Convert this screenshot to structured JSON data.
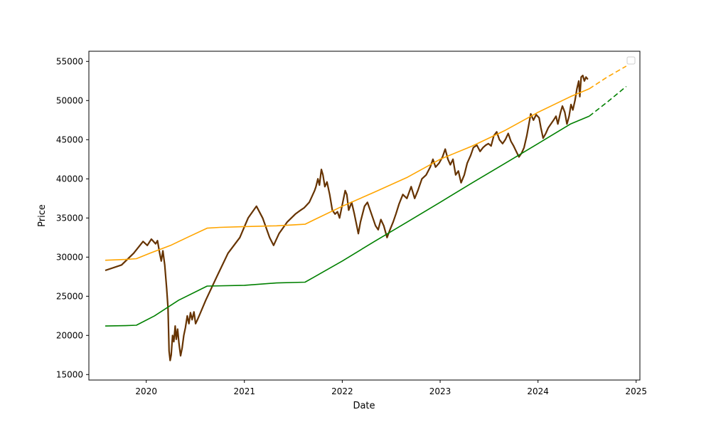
{
  "chart_data": {
    "type": "line",
    "title": "",
    "xlabel": "Date",
    "ylabel": "Price",
    "xlim": [
      "2019-06-01",
      "2025-01-15"
    ],
    "ylim": [
      14300,
      56300
    ],
    "x_ticks": [
      "2020",
      "2021",
      "2022",
      "2023",
      "2024",
      "2025"
    ],
    "y_ticks": [
      15000,
      20000,
      25000,
      30000,
      35000,
      40000,
      45000,
      50000,
      55000
    ],
    "grid": false,
    "legend": {
      "placement": "top-right",
      "entries": []
    },
    "colors": {
      "price": "#663300",
      "upper_band": "#ffa500",
      "lower_band": "#008000"
    },
    "series": [
      {
        "key": "price",
        "style": "solid",
        "points": [
          [
            "2019-08-01",
            28300
          ],
          [
            "2019-10-01",
            29000
          ],
          [
            "2019-11-15",
            30500
          ],
          [
            "2019-12-20",
            32000
          ],
          [
            "2020-01-05",
            31500
          ],
          [
            "2020-01-20",
            32300
          ],
          [
            "2020-02-05",
            31700
          ],
          [
            "2020-02-12",
            32100
          ],
          [
            "2020-02-20",
            30500
          ],
          [
            "2020-02-26",
            29500
          ],
          [
            "2020-03-03",
            30800
          ],
          [
            "2020-03-10",
            29000
          ],
          [
            "2020-03-17",
            26000
          ],
          [
            "2020-03-22",
            23500
          ],
          [
            "2020-03-26",
            18000
          ],
          [
            "2020-03-30",
            16800
          ],
          [
            "2020-04-03",
            17500
          ],
          [
            "2020-04-08",
            20000
          ],
          [
            "2020-04-13",
            19200
          ],
          [
            "2020-04-18",
            21200
          ],
          [
            "2020-04-22",
            19500
          ],
          [
            "2020-04-27",
            20800
          ],
          [
            "2020-05-02",
            19000
          ],
          [
            "2020-05-08",
            17400
          ],
          [
            "2020-05-14",
            18400
          ],
          [
            "2020-05-20",
            20000
          ],
          [
            "2020-05-26",
            21000
          ],
          [
            "2020-06-02",
            22500
          ],
          [
            "2020-06-08",
            21500
          ],
          [
            "2020-06-14",
            22900
          ],
          [
            "2020-06-20",
            22000
          ],
          [
            "2020-06-27",
            23000
          ],
          [
            "2020-07-03",
            21500
          ],
          [
            "2020-07-10",
            22000
          ],
          [
            "2020-07-20",
            22800
          ],
          [
            "2020-08-10",
            24500
          ],
          [
            "2020-09-20",
            27500
          ],
          [
            "2020-11-01",
            30500
          ],
          [
            "2020-12-15",
            32500
          ],
          [
            "2021-01-15",
            35000
          ],
          [
            "2021-02-15",
            36500
          ],
          [
            "2021-03-10",
            35000
          ],
          [
            "2021-04-05",
            32500
          ],
          [
            "2021-04-20",
            31500
          ],
          [
            "2021-05-10",
            33000
          ],
          [
            "2021-06-10",
            34500
          ],
          [
            "2021-07-10",
            35500
          ],
          [
            "2021-07-30",
            36000
          ],
          [
            "2021-08-12",
            36300
          ],
          [
            "2021-08-31",
            37000
          ],
          [
            "2021-09-20",
            38500
          ],
          [
            "2021-09-25",
            39000
          ],
          [
            "2021-10-02",
            40000
          ],
          [
            "2021-10-08",
            39200
          ],
          [
            "2021-10-15",
            41200
          ],
          [
            "2021-10-21",
            40500
          ],
          [
            "2021-10-28",
            39000
          ],
          [
            "2021-11-05",
            39600
          ],
          [
            "2021-11-15",
            38000
          ],
          [
            "2021-11-25",
            36000
          ],
          [
            "2021-12-05",
            35500
          ],
          [
            "2021-12-14",
            35800
          ],
          [
            "2021-12-22",
            35000
          ],
          [
            "2022-01-03",
            37000
          ],
          [
            "2022-01-12",
            38500
          ],
          [
            "2022-01-18",
            38000
          ],
          [
            "2022-01-25",
            36000
          ],
          [
            "2022-02-05",
            37000
          ],
          [
            "2022-02-15",
            35500
          ],
          [
            "2022-02-24",
            34000
          ],
          [
            "2022-03-02",
            33000
          ],
          [
            "2022-03-10",
            34500
          ],
          [
            "2022-03-25",
            36500
          ],
          [
            "2022-04-05",
            37000
          ],
          [
            "2022-04-15",
            36000
          ],
          [
            "2022-04-25",
            35000
          ],
          [
            "2022-05-05",
            34000
          ],
          [
            "2022-05-15",
            33500
          ],
          [
            "2022-05-25",
            34800
          ],
          [
            "2022-06-05",
            34000
          ],
          [
            "2022-06-17",
            32500
          ],
          [
            "2022-06-28",
            33500
          ],
          [
            "2022-07-10",
            34500
          ],
          [
            "2022-07-20",
            35500
          ],
          [
            "2022-08-01",
            36800
          ],
          [
            "2022-08-15",
            38000
          ],
          [
            "2022-08-30",
            37500
          ],
          [
            "2022-09-15",
            39000
          ],
          [
            "2022-09-28",
            37500
          ],
          [
            "2022-10-10",
            38500
          ],
          [
            "2022-10-25",
            40000
          ],
          [
            "2022-11-10",
            40500
          ],
          [
            "2022-11-25",
            41500
          ],
          [
            "2022-12-05",
            42500
          ],
          [
            "2022-12-15",
            41500
          ],
          [
            "2022-12-28",
            42000
          ],
          [
            "2023-01-10",
            42800
          ],
          [
            "2023-01-20",
            43800
          ],
          [
            "2023-01-30",
            42500
          ],
          [
            "2023-02-08",
            41800
          ],
          [
            "2023-02-18",
            42500
          ],
          [
            "2023-02-28",
            40500
          ],
          [
            "2023-03-10",
            41000
          ],
          [
            "2023-03-20",
            39500
          ],
          [
            "2023-04-01",
            40500
          ],
          [
            "2023-04-12",
            42000
          ],
          [
            "2023-04-25",
            43000
          ],
          [
            "2023-05-05",
            44000
          ],
          [
            "2023-05-18",
            44300
          ],
          [
            "2023-05-30",
            43500
          ],
          [
            "2023-06-10",
            44000
          ],
          [
            "2023-06-20",
            44300
          ],
          [
            "2023-06-30",
            44500
          ],
          [
            "2023-07-10",
            44200
          ],
          [
            "2023-07-20",
            45500
          ],
          [
            "2023-07-31",
            46000
          ],
          [
            "2023-08-10",
            45000
          ],
          [
            "2023-08-22",
            44500
          ],
          [
            "2023-09-01",
            45000
          ],
          [
            "2023-09-12",
            45800
          ],
          [
            "2023-09-22",
            44800
          ],
          [
            "2023-10-02",
            44200
          ],
          [
            "2023-10-12",
            43500
          ],
          [
            "2023-10-22",
            42800
          ],
          [
            "2023-11-01",
            43300
          ],
          [
            "2023-11-10",
            44000
          ],
          [
            "2023-11-20",
            45500
          ],
          [
            "2023-11-28",
            47000
          ],
          [
            "2023-12-05",
            48300
          ],
          [
            "2023-12-15",
            47500
          ],
          [
            "2023-12-25",
            48200
          ],
          [
            "2024-01-05",
            47800
          ],
          [
            "2024-01-12",
            46500
          ],
          [
            "2024-01-20",
            45200
          ],
          [
            "2024-01-30",
            45800
          ],
          [
            "2024-02-08",
            46500
          ],
          [
            "2024-02-18",
            47000
          ],
          [
            "2024-02-28",
            47500
          ],
          [
            "2024-03-08",
            48000
          ],
          [
            "2024-03-15",
            47000
          ],
          [
            "2024-03-25",
            48500
          ],
          [
            "2024-04-01",
            49300
          ],
          [
            "2024-04-10",
            48500
          ],
          [
            "2024-04-18",
            47000
          ],
          [
            "2024-04-26",
            48000
          ],
          [
            "2024-05-03",
            49500
          ],
          [
            "2024-05-10",
            48800
          ],
          [
            "2024-05-18",
            50000
          ],
          [
            "2024-05-25",
            51500
          ],
          [
            "2024-06-01",
            52500
          ],
          [
            "2024-06-05",
            50500
          ],
          [
            "2024-06-10",
            53000
          ],
          [
            "2024-06-16",
            53200
          ],
          [
            "2024-06-22",
            52500
          ],
          [
            "2024-06-28",
            53000
          ],
          [
            "2024-07-05",
            52700
          ]
        ]
      },
      {
        "key": "upper_band",
        "style": "solid",
        "points": [
          [
            "2019-08-01",
            29600
          ],
          [
            "2019-10-15",
            29700
          ],
          [
            "2019-11-25",
            29800
          ],
          [
            "2020-01-15",
            30500
          ],
          [
            "2020-04-01",
            31500
          ],
          [
            "2020-06-01",
            32500
          ],
          [
            "2020-08-15",
            33700
          ],
          [
            "2020-10-01",
            33800
          ],
          [
            "2021-01-01",
            33900
          ],
          [
            "2021-05-01",
            34000
          ],
          [
            "2021-08-15",
            34200
          ],
          [
            "2021-09-20",
            34800
          ],
          [
            "2022-01-01",
            36500
          ],
          [
            "2022-05-01",
            38300
          ],
          [
            "2022-09-01",
            40200
          ],
          [
            "2023-01-01",
            42500
          ],
          [
            "2023-05-01",
            44200
          ],
          [
            "2023-09-01",
            46200
          ],
          [
            "2024-01-01",
            48500
          ],
          [
            "2024-05-01",
            50500
          ],
          [
            "2024-07-10",
            51500
          ]
        ]
      },
      {
        "key": "upper_band_projection",
        "style": "dashed",
        "points": [
          [
            "2024-07-10",
            51500
          ],
          [
            "2024-09-15",
            53000
          ],
          [
            "2024-11-25",
            54400
          ]
        ]
      },
      {
        "key": "lower_band",
        "style": "solid",
        "points": [
          [
            "2019-08-01",
            21200
          ],
          [
            "2019-10-15",
            21250
          ],
          [
            "2019-11-25",
            21300
          ],
          [
            "2020-02-01",
            22500
          ],
          [
            "2020-05-01",
            24500
          ],
          [
            "2020-08-15",
            26300
          ],
          [
            "2021-01-01",
            26400
          ],
          [
            "2021-05-01",
            26700
          ],
          [
            "2021-08-15",
            26800
          ],
          [
            "2021-09-15",
            27400
          ],
          [
            "2022-01-01",
            29500
          ],
          [
            "2022-05-01",
            32000
          ],
          [
            "2022-09-01",
            34500
          ],
          [
            "2023-01-01",
            37000
          ],
          [
            "2023-05-01",
            39500
          ],
          [
            "2023-09-01",
            42000
          ],
          [
            "2024-01-01",
            44500
          ],
          [
            "2024-05-01",
            47000
          ],
          [
            "2024-07-10",
            48000
          ]
        ]
      },
      {
        "key": "lower_band_projection",
        "style": "dashed",
        "points": [
          [
            "2024-07-10",
            48000
          ],
          [
            "2024-09-15",
            49800
          ],
          [
            "2024-11-25",
            51800
          ]
        ]
      }
    ]
  }
}
